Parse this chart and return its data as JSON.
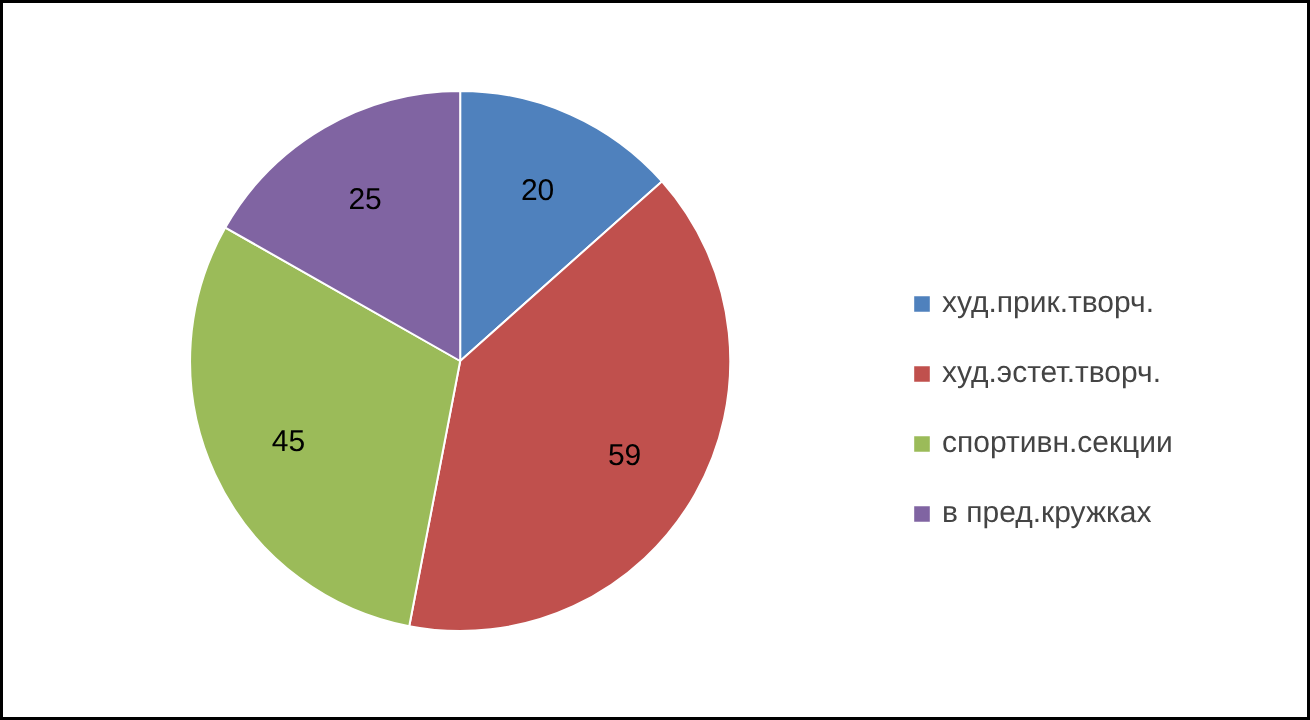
{
  "chart_data": {
    "type": "pie",
    "categories": [
      "худ.прик.творч.",
      "худ.эстет.творч.",
      "спортивн.секции",
      "в пред.кружках"
    ],
    "values": [
      20,
      59,
      45,
      25
    ],
    "colors": [
      "#4f81bd",
      "#c0504d",
      "#9bbb59",
      "#8064a2"
    ],
    "data_labels": true,
    "legend": "right"
  }
}
